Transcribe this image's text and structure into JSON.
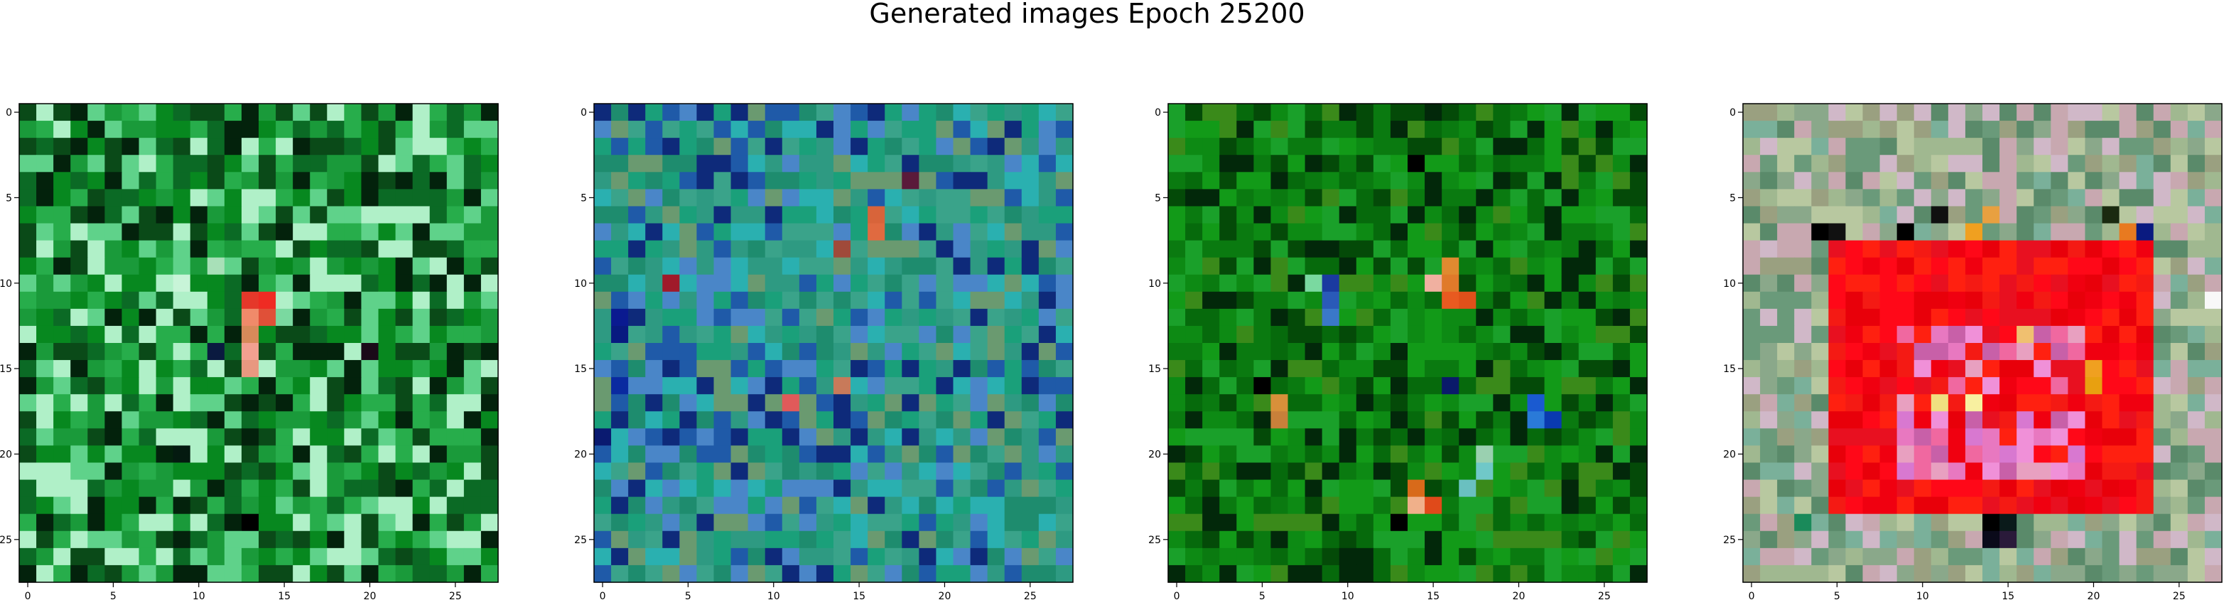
{
  "figure": {
    "title": "Generated images Epoch 25200"
  },
  "chart_data": [
    {
      "type": "heatmap",
      "title": "",
      "xlabel": "",
      "ylabel": "",
      "grid": false,
      "size": [
        28,
        28
      ],
      "xlim": [
        -0.5,
        27.5
      ],
      "ylim": [
        27.5,
        -0.5
      ],
      "xticks": [
        0,
        5,
        10,
        15,
        20,
        25
      ],
      "yticks": [
        0,
        5,
        10,
        15,
        20,
        25
      ],
      "palette": [
        "#0b6a25",
        "#07881f",
        "#1a9a3a",
        "#27ad4b",
        "#0a4a18",
        "#03220c",
        "#5fd28a",
        "#b0f0c8"
      ],
      "base_rgb": [
        8,
        135,
        38
      ],
      "pixels": [
        {
          "r": 11,
          "c": 13,
          "color": "#e5382a"
        },
        {
          "r": 11,
          "c": 14,
          "color": "#ef2b23"
        },
        {
          "r": 12,
          "c": 13,
          "color": "#f08a6a"
        },
        {
          "r": 12,
          "c": 14,
          "color": "#e05038"
        },
        {
          "r": 13,
          "c": 13,
          "color": "#d78a5a"
        },
        {
          "r": 14,
          "c": 13,
          "color": "#f2a090"
        },
        {
          "r": 15,
          "c": 13,
          "color": "#e89880"
        },
        {
          "r": 10,
          "c": 9,
          "color": "#c8f4d8"
        },
        {
          "r": 9,
          "c": 11,
          "color": "#a8e0b8"
        },
        {
          "r": 12,
          "c": 15,
          "color": "#7ad9a0"
        },
        {
          "r": 14,
          "c": 11,
          "color": "#0a1a40"
        },
        {
          "r": 14,
          "c": 20,
          "color": "#1a0a18"
        },
        {
          "r": 20,
          "c": 9,
          "color": "#041a10"
        },
        {
          "r": 24,
          "c": 13,
          "color": "#000000"
        }
      ]
    },
    {
      "type": "heatmap",
      "title": "",
      "xlabel": "",
      "ylabel": "",
      "grid": false,
      "size": [
        28,
        28
      ],
      "xlim": [
        -0.5,
        27.5
      ],
      "ylim": [
        27.5,
        -0.5
      ],
      "xticks": [
        0,
        5,
        10,
        15,
        20,
        25
      ],
      "yticks": [
        0,
        5,
        10,
        15,
        20,
        25
      ],
      "palette": [
        "#2e9a82",
        "#3aa38a",
        "#1e8c6e",
        "#2ab0b0",
        "#4a86c8",
        "#1f5aa8",
        "#0e2a7a",
        "#1aa07a",
        "#6a9a70"
      ],
      "base_rgb": [
        46,
        154,
        130
      ],
      "pixels": [
        {
          "r": 6,
          "c": 16,
          "color": "#d8643a"
        },
        {
          "r": 7,
          "c": 16,
          "color": "#e06a40"
        },
        {
          "r": 10,
          "c": 4,
          "color": "#a01a2a"
        },
        {
          "r": 16,
          "c": 14,
          "color": "#c87a5a"
        },
        {
          "r": 17,
          "c": 11,
          "color": "#e05a5a"
        },
        {
          "r": 8,
          "c": 14,
          "color": "#a04a3a"
        },
        {
          "r": 12,
          "c": 1,
          "color": "#0a1a90"
        },
        {
          "r": 13,
          "c": 1,
          "color": "#081a80"
        },
        {
          "r": 16,
          "c": 1,
          "color": "#0a2aa0"
        },
        {
          "r": 19,
          "c": 0,
          "color": "#0a1a70"
        },
        {
          "r": 4,
          "c": 18,
          "color": "#5a1a3a"
        }
      ]
    },
    {
      "type": "heatmap",
      "title": "",
      "xlabel": "",
      "ylabel": "",
      "grid": false,
      "size": [
        28,
        28
      ],
      "xlim": [
        -0.5,
        27.5
      ],
      "ylim": [
        27.5,
        -0.5
      ],
      "xticks": [
        0,
        5,
        10,
        15,
        20,
        25
      ],
      "yticks": [
        0,
        5,
        10,
        15,
        20,
        25
      ],
      "palette": [
        "#0a7a10",
        "#0d8a14",
        "#066a0c",
        "#129a18",
        "#044a08",
        "#02280a",
        "#1aa02a",
        "#3a8a1a"
      ],
      "base_rgb": [
        10,
        122,
        16
      ],
      "pixels": [
        {
          "r": 9,
          "c": 16,
          "color": "#e08a30"
        },
        {
          "r": 10,
          "c": 16,
          "color": "#e07a2a"
        },
        {
          "r": 11,
          "c": 16,
          "color": "#e85a20"
        },
        {
          "r": 11,
          "c": 17,
          "color": "#e0501a"
        },
        {
          "r": 10,
          "c": 15,
          "color": "#f0b0a0"
        },
        {
          "r": 17,
          "c": 6,
          "color": "#d8903a"
        },
        {
          "r": 18,
          "c": 6,
          "color": "#c8803a"
        },
        {
          "r": 22,
          "c": 14,
          "color": "#d86a1a"
        },
        {
          "r": 23,
          "c": 14,
          "color": "#f0b08a"
        },
        {
          "r": 23,
          "c": 15,
          "color": "#e04a1a"
        },
        {
          "r": 10,
          "c": 9,
          "color": "#1a3aa0"
        },
        {
          "r": 11,
          "c": 9,
          "color": "#2a5ab8"
        },
        {
          "r": 12,
          "c": 9,
          "color": "#3a78c8"
        },
        {
          "r": 17,
          "c": 21,
          "color": "#1a5ad0"
        },
        {
          "r": 18,
          "c": 21,
          "color": "#2a7ad8"
        },
        {
          "r": 18,
          "c": 22,
          "color": "#0a3ab0"
        },
        {
          "r": 16,
          "c": 16,
          "color": "#0a1a6a"
        },
        {
          "r": 16,
          "c": 5,
          "color": "#000000"
        },
        {
          "r": 3,
          "c": 14,
          "color": "#000000"
        },
        {
          "r": 10,
          "c": 8,
          "color": "#7ad9a0"
        },
        {
          "r": 20,
          "c": 18,
          "color": "#9ad0b0"
        },
        {
          "r": 21,
          "c": 18,
          "color": "#70c8c8"
        },
        {
          "r": 22,
          "c": 17,
          "color": "#6ac0c0"
        },
        {
          "r": 24,
          "c": 13,
          "color": "#000000"
        }
      ]
    },
    {
      "type": "heatmap",
      "title": "",
      "xlabel": "",
      "ylabel": "",
      "grid": false,
      "size": [
        28,
        28
      ],
      "xlim": [
        -0.5,
        27.5
      ],
      "ylim": [
        27.5,
        -0.5
      ],
      "xticks": [
        0,
        5,
        10,
        15,
        20,
        25
      ],
      "yticks": [
        0,
        5,
        10,
        15,
        20,
        25
      ],
      "palette": [
        "#8aa88a",
        "#a0b890",
        "#6a9a7a",
        "#c8a8b0",
        "#b8c8a0",
        "#5a8a6a",
        "#d0b8c8",
        "#9aa080",
        "#7ab09a"
      ],
      "red_palette": [
        "#f00010",
        "#e8000a",
        "#ff0818",
        "#e81020",
        "#f41a14",
        "#ff2010"
      ],
      "pink_palette": [
        "#e878c0",
        "#f090d8",
        "#c860a8",
        "#e8a0c0",
        "#f068a0",
        "#d878d0"
      ],
      "base_rgb": [
        138,
        168,
        138
      ],
      "red_region": {
        "rows": [
          8,
          23
        ],
        "cols": [
          5,
          23
        ]
      },
      "pink_region": {
        "rows": [
          13,
          21
        ],
        "cols": [
          9,
          19
        ]
      },
      "pixels": [
        {
          "r": 7,
          "c": 4,
          "color": "#000000"
        },
        {
          "r": 7,
          "c": 5,
          "color": "#111111"
        },
        {
          "r": 7,
          "c": 9,
          "color": "#000000"
        },
        {
          "r": 7,
          "c": 23,
          "color": "#0a1a80"
        },
        {
          "r": 6,
          "c": 14,
          "color": "#e8a040"
        },
        {
          "r": 7,
          "c": 13,
          "color": "#f0a020"
        },
        {
          "r": 7,
          "c": 22,
          "color": "#e87a20"
        },
        {
          "r": 15,
          "c": 20,
          "color": "#f0a020"
        },
        {
          "r": 16,
          "c": 20,
          "color": "#e8a010"
        },
        {
          "r": 17,
          "c": 11,
          "color": "#f0e080"
        },
        {
          "r": 17,
          "c": 13,
          "color": "#f8f0a0"
        },
        {
          "r": 13,
          "c": 16,
          "color": "#f0c070"
        },
        {
          "r": 24,
          "c": 14,
          "color": "#000000"
        },
        {
          "r": 24,
          "c": 15,
          "color": "#0a1a1a"
        },
        {
          "r": 25,
          "c": 14,
          "color": "#0a0a1a"
        },
        {
          "r": 25,
          "c": 15,
          "color": "#2a1a3a"
        },
        {
          "r": 24,
          "c": 3,
          "color": "#1a8a5a"
        },
        {
          "r": 11,
          "c": 27,
          "color": "#f8f8f8"
        },
        {
          "r": 6,
          "c": 11,
          "color": "#101010"
        },
        {
          "r": 6,
          "c": 21,
          "color": "#1a2a10"
        }
      ]
    }
  ]
}
